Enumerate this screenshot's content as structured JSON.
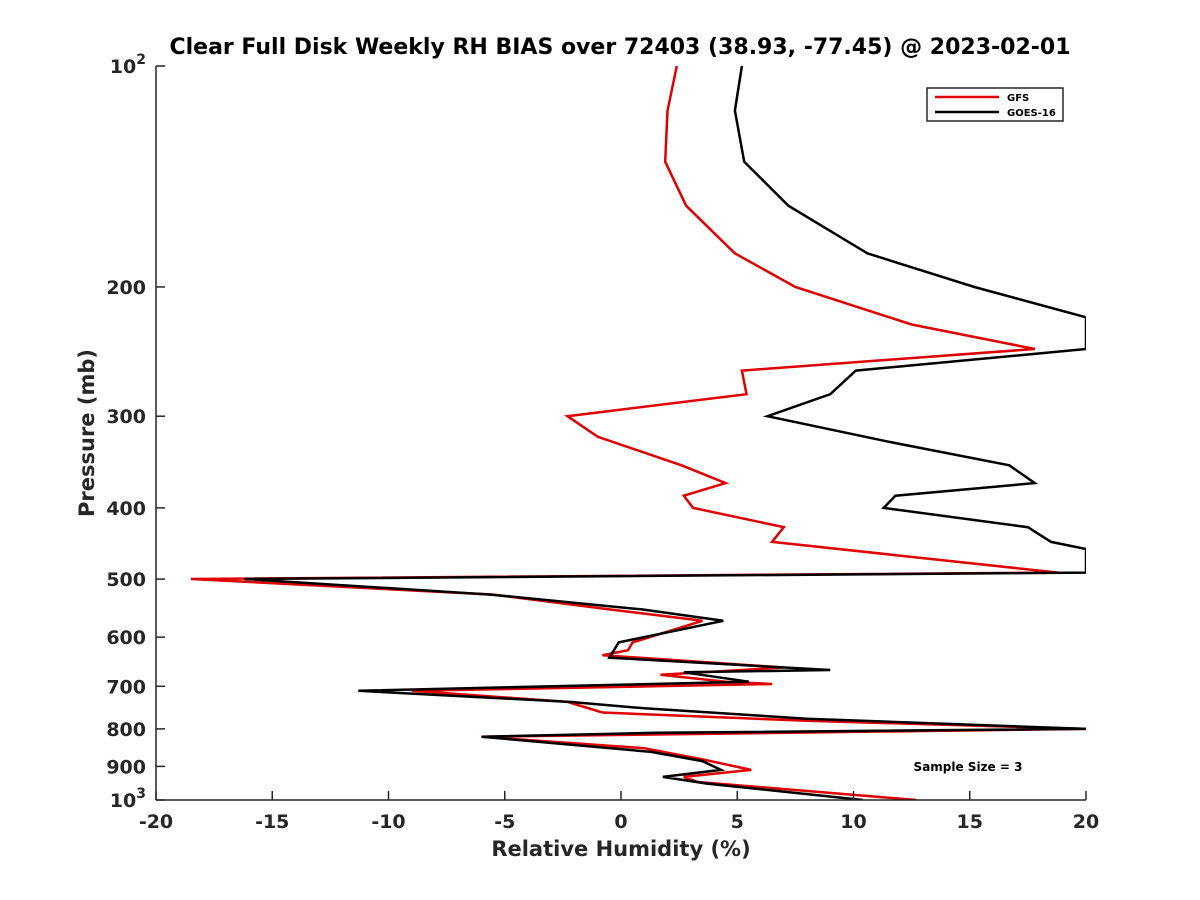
{
  "chart_data": {
    "type": "line",
    "title": "Clear Full Disk Weekly RH BIAS over 72403 (38.93, -77.45) @ 2023-02-01",
    "xlabel": "Relative Humidity (%)",
    "ylabel": "Pressure (mb)",
    "xlim": [
      -20,
      20
    ],
    "ylim": [
      1000,
      100
    ],
    "y_scale": "log",
    "grid": false,
    "legend_position": "top-right",
    "x_ticks": [
      "-20",
      "-15",
      "-10",
      "-5",
      "0",
      "5",
      "10",
      "15",
      "20"
    ],
    "y_ticks": [
      {
        "value": 100,
        "base": "10",
        "exp": "2"
      },
      {
        "value": 200,
        "base": "200",
        "exp": ""
      },
      {
        "value": 300,
        "base": "300",
        "exp": ""
      },
      {
        "value": 400,
        "base": "400",
        "exp": ""
      },
      {
        "value": 500,
        "base": "500",
        "exp": ""
      },
      {
        "value": 600,
        "base": "600",
        "exp": ""
      },
      {
        "value": 700,
        "base": "700",
        "exp": ""
      },
      {
        "value": 800,
        "base": "800",
        "exp": ""
      },
      {
        "value": 900,
        "base": "900",
        "exp": ""
      },
      {
        "value": 1000,
        "base": "10",
        "exp": "3"
      }
    ],
    "series": [
      {
        "name": "GFS",
        "color": "#e00000",
        "points": [
          [
            2.4,
            100
          ],
          [
            2.0,
            115
          ],
          [
            1.9,
            135
          ],
          [
            2.8,
            155
          ],
          [
            4.9,
            180
          ],
          [
            7.5,
            200
          ],
          [
            12.5,
            225
          ],
          [
            17.8,
            243
          ],
          [
            5.2,
            260
          ],
          [
            5.4,
            280
          ],
          [
            -2.3,
            300
          ],
          [
            -1.0,
            320
          ],
          [
            2.6,
            350
          ],
          [
            4.5,
            370
          ],
          [
            2.7,
            385
          ],
          [
            3.1,
            400
          ],
          [
            7.0,
            425
          ],
          [
            6.5,
            445
          ],
          [
            18.8,
            490
          ],
          [
            -18.5,
            500
          ],
          [
            -5.5,
            525
          ],
          [
            -0.5,
            550
          ],
          [
            3.5,
            570
          ],
          [
            0.5,
            610
          ],
          [
            0.3,
            625
          ],
          [
            -0.8,
            635
          ],
          [
            7.0,
            660
          ],
          [
            1.7,
            675
          ],
          [
            4.5,
            690
          ],
          [
            6.5,
            695
          ],
          [
            -9.0,
            710
          ],
          [
            -2.3,
            735
          ],
          [
            -0.8,
            760
          ],
          [
            8.0,
            780
          ],
          [
            20.0,
            800
          ],
          [
            -6.0,
            820
          ],
          [
            1.0,
            850
          ],
          [
            3.5,
            880
          ],
          [
            5.6,
            910
          ],
          [
            2.7,
            930
          ],
          [
            3.3,
            945
          ],
          [
            12.7,
            1000
          ]
        ]
      },
      {
        "name": "GOES-16",
        "color": "#000000",
        "points": [
          [
            5.2,
            100
          ],
          [
            4.9,
            115
          ],
          [
            5.3,
            135
          ],
          [
            7.2,
            155
          ],
          [
            10.6,
            180
          ],
          [
            15.2,
            200
          ],
          [
            20.0,
            220
          ],
          [
            20.0,
            243
          ],
          [
            10.1,
            260
          ],
          [
            9.0,
            280
          ],
          [
            6.3,
            300
          ],
          [
            11.5,
            325
          ],
          [
            16.7,
            350
          ],
          [
            17.8,
            370
          ],
          [
            11.8,
            385
          ],
          [
            11.3,
            400
          ],
          [
            17.5,
            425
          ],
          [
            18.5,
            445
          ],
          [
            20.0,
            455
          ],
          [
            20.0,
            490
          ],
          [
            -16.2,
            500
          ],
          [
            -5.6,
            525
          ],
          [
            0.9,
            550
          ],
          [
            4.4,
            570
          ],
          [
            -0.1,
            610
          ],
          [
            -0.5,
            640
          ],
          [
            9.0,
            665
          ],
          [
            2.7,
            670
          ],
          [
            5.5,
            690
          ],
          [
            -11.3,
            710
          ],
          [
            -2.2,
            735
          ],
          [
            1.0,
            750
          ],
          [
            8.0,
            775
          ],
          [
            20.0,
            800
          ],
          [
            1.5,
            810
          ],
          [
            -6.0,
            820
          ],
          [
            1.3,
            860
          ],
          [
            3.5,
            885
          ],
          [
            4.3,
            910
          ],
          [
            1.8,
            930
          ],
          [
            3.7,
            950
          ],
          [
            10.4,
            1000
          ]
        ]
      }
    ],
    "annotations": [
      "Sample Size = 3"
    ]
  }
}
